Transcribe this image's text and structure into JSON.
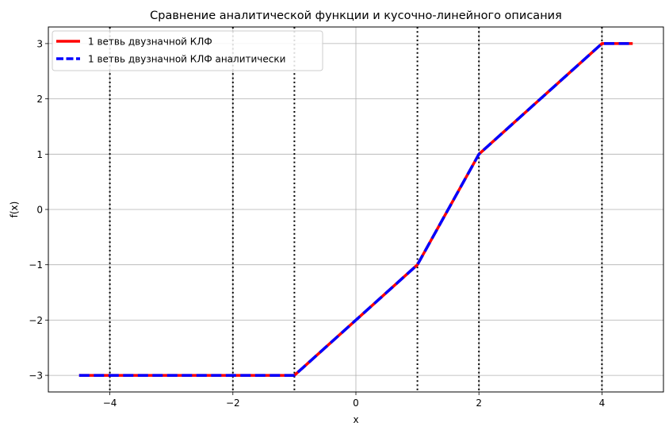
{
  "chart_data": {
    "type": "line",
    "title": "Сравнение аналитической функции и кусочно-линейного описания",
    "xlabel": "x",
    "ylabel": "f(x)",
    "xlim": [
      -5,
      5
    ],
    "ylim": [
      -3.3,
      3.3
    ],
    "xticks": [
      -4,
      -2,
      0,
      2,
      4
    ],
    "xtick_labels": [
      "−4",
      "−2",
      "0",
      "2",
      "4"
    ],
    "yticks": [
      -3,
      -2,
      -1,
      0,
      1,
      2,
      3
    ],
    "ytick_labels": [
      "−3",
      "−2",
      "−1",
      "0",
      "1",
      "2",
      "3"
    ],
    "grid": true,
    "legend_position": "upper-left",
    "vertical_dotted_lines_x": [
      -4,
      -2,
      -1,
      1,
      2,
      4
    ],
    "series": [
      {
        "name": "1 ветвь двузначной КЛФ",
        "style": "solid",
        "color": "#ff0000",
        "x": [
          -4.5,
          -1,
          1,
          2,
          4,
          4.5
        ],
        "y": [
          -3,
          -3,
          -1,
          1,
          3,
          3
        ]
      },
      {
        "name": "1 ветвь двузначной КЛФ аналитически",
        "style": "dashed",
        "color": "#0000ff",
        "x": [
          -4.5,
          -1,
          1,
          2,
          4,
          4.5
        ],
        "y": [
          -3,
          -3,
          -1,
          1,
          3,
          3
        ]
      }
    ]
  }
}
